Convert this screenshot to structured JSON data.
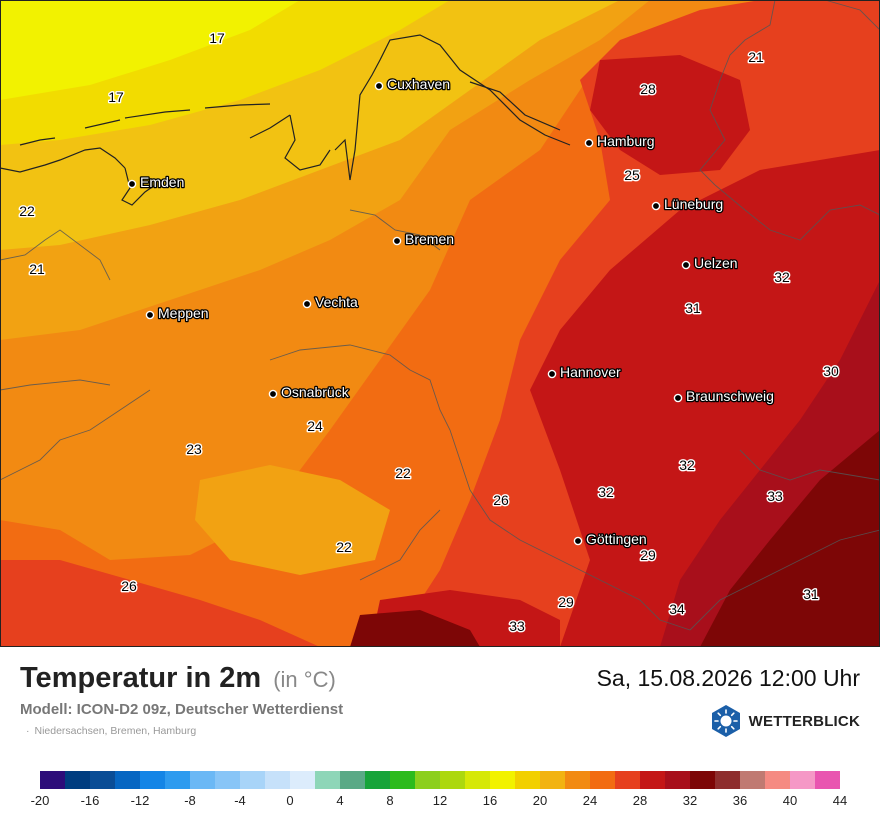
{
  "header": {
    "title": "Temperatur in 2m",
    "unit": "(in °C)",
    "model": "Modell: ICON-D2 09z, Deutscher Wetterdienst",
    "region": "Niedersachsen, Bremen, Hamburg",
    "datetime": "Sa, 15.08.2026 12:00 Uhr",
    "brand": "WETTERBLICK",
    "brand_icon": "sun-logo-icon"
  },
  "map": {
    "cities": [
      {
        "name": "Cuxhaven"
      },
      {
        "name": "Hamburg"
      },
      {
        "name": "Emden"
      },
      {
        "name": "Lüneburg"
      },
      {
        "name": "Bremen"
      },
      {
        "name": "Uelzen"
      },
      {
        "name": "Vechta"
      },
      {
        "name": "Meppen"
      },
      {
        "name": "Hannover"
      },
      {
        "name": "Osnabrück"
      },
      {
        "name": "Braunschweig"
      },
      {
        "name": "Göttingen"
      }
    ],
    "temperature_labels": [
      "17",
      "17",
      "21",
      "28",
      "25",
      "22",
      "21",
      "32",
      "31",
      "30",
      "24",
      "23",
      "22",
      "32",
      "26",
      "32",
      "33",
      "22",
      "29",
      "26",
      "29",
      "34",
      "31",
      "33"
    ]
  },
  "legend": {
    "colors": [
      "#2d0d7a",
      "#003d80",
      "#0a4d96",
      "#0666c2",
      "#1485e6",
      "#2e9bef",
      "#6bb8f5",
      "#88c5f7",
      "#a8d4f8",
      "#c6e1fa",
      "#dcecfc",
      "#8ed6b8",
      "#5aa986",
      "#16a43a",
      "#2dbb1c",
      "#8ccf1c",
      "#acd80e",
      "#d6e806",
      "#f2f200",
      "#f2d000",
      "#f2b312",
      "#f28a12",
      "#f26c12",
      "#e6401e",
      "#c41616",
      "#a80f1b",
      "#7d0606",
      "#8e2e2e",
      "#c07a72",
      "#f58a82",
      "#f598c6",
      "#e955b0"
    ],
    "labels": [
      "-20",
      "-16",
      "-12",
      "-8",
      "-4",
      "0",
      "4",
      "8",
      "12",
      "16",
      "20",
      "24",
      "28",
      "32",
      "36",
      "40",
      "44"
    ]
  }
}
